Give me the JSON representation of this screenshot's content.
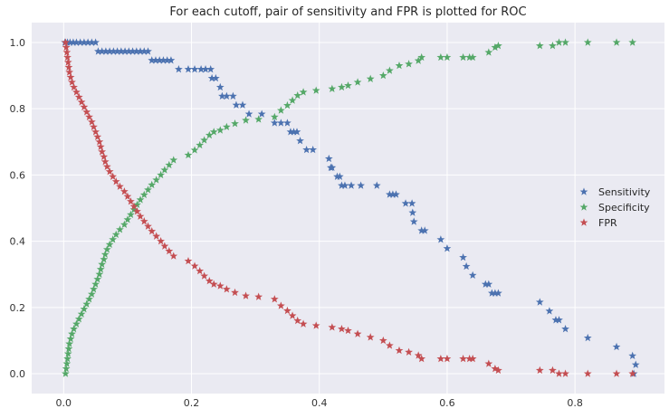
{
  "chart_data": {
    "type": "scatter",
    "title": "For each cutoff, pair of sensitivity and FPR is plotted for ROC",
    "xlabel": "",
    "ylabel": "",
    "xlim": [
      -0.05,
      0.94
    ],
    "ylim": [
      -0.06,
      1.06
    ],
    "xticks": [
      "0.0",
      "0.2",
      "0.4",
      "0.6",
      "0.8"
    ],
    "yticks": [
      "0.0",
      "0.2",
      "0.4",
      "0.6",
      "0.8",
      "1.0"
    ],
    "grid": true,
    "legend_position": "center-right",
    "marker": "star",
    "series": [
      {
        "name": "Sensitivity",
        "color": "#4c72b0",
        "points": [
          [
            0.002,
            1.0
          ],
          [
            0.006,
            1.0
          ],
          [
            0.01,
            1.0
          ],
          [
            0.015,
            1.0
          ],
          [
            0.02,
            1.0
          ],
          [
            0.026,
            1.0
          ],
          [
            0.032,
            1.0
          ],
          [
            0.038,
            1.0
          ],
          [
            0.044,
            1.0
          ],
          [
            0.05,
            1.0
          ],
          [
            0.054,
            0.973
          ],
          [
            0.06,
            0.973
          ],
          [
            0.066,
            0.973
          ],
          [
            0.072,
            0.973
          ],
          [
            0.078,
            0.973
          ],
          [
            0.084,
            0.973
          ],
          [
            0.09,
            0.973
          ],
          [
            0.096,
            0.973
          ],
          [
            0.102,
            0.973
          ],
          [
            0.108,
            0.973
          ],
          [
            0.114,
            0.973
          ],
          [
            0.12,
            0.973
          ],
          [
            0.126,
            0.973
          ],
          [
            0.132,
            0.973
          ],
          [
            0.138,
            0.946
          ],
          [
            0.144,
            0.946
          ],
          [
            0.15,
            0.946
          ],
          [
            0.156,
            0.946
          ],
          [
            0.162,
            0.946
          ],
          [
            0.168,
            0.946
          ],
          [
            0.18,
            0.919
          ],
          [
            0.195,
            0.919
          ],
          [
            0.205,
            0.919
          ],
          [
            0.215,
            0.919
          ],
          [
            0.222,
            0.919
          ],
          [
            0.23,
            0.919
          ],
          [
            0.232,
            0.892
          ],
          [
            0.238,
            0.892
          ],
          [
            0.245,
            0.865
          ],
          [
            0.248,
            0.838
          ],
          [
            0.255,
            0.838
          ],
          [
            0.265,
            0.838
          ],
          [
            0.27,
            0.811
          ],
          [
            0.28,
            0.811
          ],
          [
            0.29,
            0.784
          ],
          [
            0.31,
            0.784
          ],
          [
            0.33,
            0.757
          ],
          [
            0.34,
            0.757
          ],
          [
            0.35,
            0.757
          ],
          [
            0.355,
            0.73
          ],
          [
            0.36,
            0.73
          ],
          [
            0.365,
            0.73
          ],
          [
            0.37,
            0.703
          ],
          [
            0.38,
            0.676
          ],
          [
            0.39,
            0.676
          ],
          [
            0.415,
            0.649
          ],
          [
            0.418,
            0.622
          ],
          [
            0.42,
            0.622
          ],
          [
            0.428,
            0.595
          ],
          [
            0.432,
            0.595
          ],
          [
            0.435,
            0.568
          ],
          [
            0.44,
            0.568
          ],
          [
            0.45,
            0.568
          ],
          [
            0.465,
            0.568
          ],
          [
            0.49,
            0.568
          ],
          [
            0.51,
            0.541
          ],
          [
            0.515,
            0.541
          ],
          [
            0.52,
            0.541
          ],
          [
            0.535,
            0.514
          ],
          [
            0.545,
            0.514
          ],
          [
            0.546,
            0.486
          ],
          [
            0.548,
            0.459
          ],
          [
            0.56,
            0.432
          ],
          [
            0.565,
            0.432
          ],
          [
            0.59,
            0.405
          ],
          [
            0.6,
            0.378
          ],
          [
            0.625,
            0.351
          ],
          [
            0.63,
            0.324
          ],
          [
            0.64,
            0.297
          ],
          [
            0.66,
            0.27
          ],
          [
            0.665,
            0.27
          ],
          [
            0.67,
            0.243
          ],
          [
            0.675,
            0.243
          ],
          [
            0.68,
            0.243
          ],
          [
            0.745,
            0.216
          ],
          [
            0.76,
            0.189
          ],
          [
            0.77,
            0.162
          ],
          [
            0.775,
            0.162
          ],
          [
            0.785,
            0.135
          ],
          [
            0.82,
            0.108
          ],
          [
            0.865,
            0.081
          ],
          [
            0.89,
            0.054
          ],
          [
            0.895,
            0.027
          ],
          [
            0.892,
            0.0
          ]
        ]
      },
      {
        "name": "Specificity",
        "color": "#55a868",
        "points": [
          [
            0.003,
            0.0
          ],
          [
            0.004,
            0.015
          ],
          [
            0.005,
            0.03
          ],
          [
            0.006,
            0.045
          ],
          [
            0.007,
            0.06
          ],
          [
            0.008,
            0.075
          ],
          [
            0.009,
            0.09
          ],
          [
            0.011,
            0.105
          ],
          [
            0.013,
            0.12
          ],
          [
            0.016,
            0.135
          ],
          [
            0.02,
            0.15
          ],
          [
            0.024,
            0.165
          ],
          [
            0.028,
            0.18
          ],
          [
            0.032,
            0.195
          ],
          [
            0.036,
            0.21
          ],
          [
            0.04,
            0.225
          ],
          [
            0.044,
            0.24
          ],
          [
            0.047,
            0.255
          ],
          [
            0.05,
            0.27
          ],
          [
            0.053,
            0.285
          ],
          [
            0.056,
            0.3
          ],
          [
            0.058,
            0.315
          ],
          [
            0.06,
            0.33
          ],
          [
            0.063,
            0.345
          ],
          [
            0.065,
            0.36
          ],
          [
            0.068,
            0.375
          ],
          [
            0.072,
            0.39
          ],
          [
            0.077,
            0.405
          ],
          [
            0.082,
            0.42
          ],
          [
            0.088,
            0.435
          ],
          [
            0.095,
            0.45
          ],
          [
            0.1,
            0.465
          ],
          [
            0.105,
            0.48
          ],
          [
            0.11,
            0.495
          ],
          [
            0.115,
            0.51
          ],
          [
            0.12,
            0.525
          ],
          [
            0.126,
            0.54
          ],
          [
            0.132,
            0.555
          ],
          [
            0.138,
            0.57
          ],
          [
            0.145,
            0.585
          ],
          [
            0.152,
            0.6
          ],
          [
            0.158,
            0.615
          ],
          [
            0.165,
            0.63
          ],
          [
            0.172,
            0.645
          ],
          [
            0.195,
            0.66
          ],
          [
            0.205,
            0.675
          ],
          [
            0.213,
            0.69
          ],
          [
            0.22,
            0.705
          ],
          [
            0.228,
            0.72
          ],
          [
            0.235,
            0.73
          ],
          [
            0.245,
            0.735
          ],
          [
            0.255,
            0.745
          ],
          [
            0.268,
            0.755
          ],
          [
            0.285,
            0.765
          ],
          [
            0.305,
            0.768
          ],
          [
            0.33,
            0.775
          ],
          [
            0.34,
            0.795
          ],
          [
            0.35,
            0.81
          ],
          [
            0.358,
            0.825
          ],
          [
            0.366,
            0.84
          ],
          [
            0.375,
            0.85
          ],
          [
            0.395,
            0.855
          ],
          [
            0.42,
            0.86
          ],
          [
            0.435,
            0.865
          ],
          [
            0.445,
            0.87
          ],
          [
            0.46,
            0.88
          ],
          [
            0.48,
            0.89
          ],
          [
            0.5,
            0.9
          ],
          [
            0.51,
            0.915
          ],
          [
            0.525,
            0.93
          ],
          [
            0.54,
            0.935
          ],
          [
            0.555,
            0.945
          ],
          [
            0.56,
            0.955
          ],
          [
            0.59,
            0.955
          ],
          [
            0.6,
            0.955
          ],
          [
            0.625,
            0.955
          ],
          [
            0.635,
            0.955
          ],
          [
            0.64,
            0.955
          ],
          [
            0.665,
            0.97
          ],
          [
            0.675,
            0.985
          ],
          [
            0.68,
            0.99
          ],
          [
            0.745,
            0.99
          ],
          [
            0.765,
            0.99
          ],
          [
            0.775,
            1.0
          ],
          [
            0.785,
            1.0
          ],
          [
            0.82,
            1.0
          ],
          [
            0.865,
            1.0
          ],
          [
            0.89,
            1.0
          ]
        ]
      },
      {
        "name": "FPR",
        "color": "#c44e52",
        "points": [
          [
            0.003,
            1.0
          ],
          [
            0.004,
            0.985
          ],
          [
            0.005,
            0.97
          ],
          [
            0.006,
            0.955
          ],
          [
            0.007,
            0.94
          ],
          [
            0.008,
            0.925
          ],
          [
            0.009,
            0.91
          ],
          [
            0.011,
            0.895
          ],
          [
            0.013,
            0.88
          ],
          [
            0.016,
            0.865
          ],
          [
            0.02,
            0.85
          ],
          [
            0.024,
            0.835
          ],
          [
            0.028,
            0.82
          ],
          [
            0.032,
            0.805
          ],
          [
            0.036,
            0.79
          ],
          [
            0.04,
            0.775
          ],
          [
            0.044,
            0.76
          ],
          [
            0.047,
            0.745
          ],
          [
            0.05,
            0.73
          ],
          [
            0.053,
            0.715
          ],
          [
            0.056,
            0.7
          ],
          [
            0.058,
            0.685
          ],
          [
            0.06,
            0.67
          ],
          [
            0.063,
            0.655
          ],
          [
            0.065,
            0.64
          ],
          [
            0.068,
            0.625
          ],
          [
            0.072,
            0.61
          ],
          [
            0.077,
            0.595
          ],
          [
            0.082,
            0.58
          ],
          [
            0.088,
            0.565
          ],
          [
            0.095,
            0.55
          ],
          [
            0.1,
            0.535
          ],
          [
            0.105,
            0.52
          ],
          [
            0.11,
            0.505
          ],
          [
            0.115,
            0.49
          ],
          [
            0.12,
            0.475
          ],
          [
            0.126,
            0.46
          ],
          [
            0.132,
            0.445
          ],
          [
            0.138,
            0.43
          ],
          [
            0.145,
            0.415
          ],
          [
            0.152,
            0.4
          ],
          [
            0.158,
            0.385
          ],
          [
            0.165,
            0.37
          ],
          [
            0.172,
            0.355
          ],
          [
            0.195,
            0.34
          ],
          [
            0.205,
            0.325
          ],
          [
            0.213,
            0.31
          ],
          [
            0.22,
            0.295
          ],
          [
            0.228,
            0.28
          ],
          [
            0.235,
            0.27
          ],
          [
            0.245,
            0.265
          ],
          [
            0.255,
            0.255
          ],
          [
            0.268,
            0.245
          ],
          [
            0.285,
            0.235
          ],
          [
            0.305,
            0.232
          ],
          [
            0.33,
            0.225
          ],
          [
            0.34,
            0.205
          ],
          [
            0.35,
            0.19
          ],
          [
            0.358,
            0.175
          ],
          [
            0.366,
            0.16
          ],
          [
            0.375,
            0.15
          ],
          [
            0.395,
            0.145
          ],
          [
            0.42,
            0.14
          ],
          [
            0.435,
            0.135
          ],
          [
            0.445,
            0.13
          ],
          [
            0.46,
            0.12
          ],
          [
            0.48,
            0.11
          ],
          [
            0.5,
            0.1
          ],
          [
            0.51,
            0.085
          ],
          [
            0.525,
            0.07
          ],
          [
            0.54,
            0.065
          ],
          [
            0.555,
            0.055
          ],
          [
            0.56,
            0.045
          ],
          [
            0.59,
            0.045
          ],
          [
            0.6,
            0.045
          ],
          [
            0.625,
            0.045
          ],
          [
            0.635,
            0.045
          ],
          [
            0.64,
            0.045
          ],
          [
            0.665,
            0.03
          ],
          [
            0.675,
            0.015
          ],
          [
            0.68,
            0.01
          ],
          [
            0.745,
            0.01
          ],
          [
            0.765,
            0.01
          ],
          [
            0.775,
            0.0
          ],
          [
            0.785,
            0.0
          ],
          [
            0.82,
            0.0
          ],
          [
            0.865,
            0.0
          ],
          [
            0.89,
            0.0
          ]
        ]
      }
    ]
  }
}
